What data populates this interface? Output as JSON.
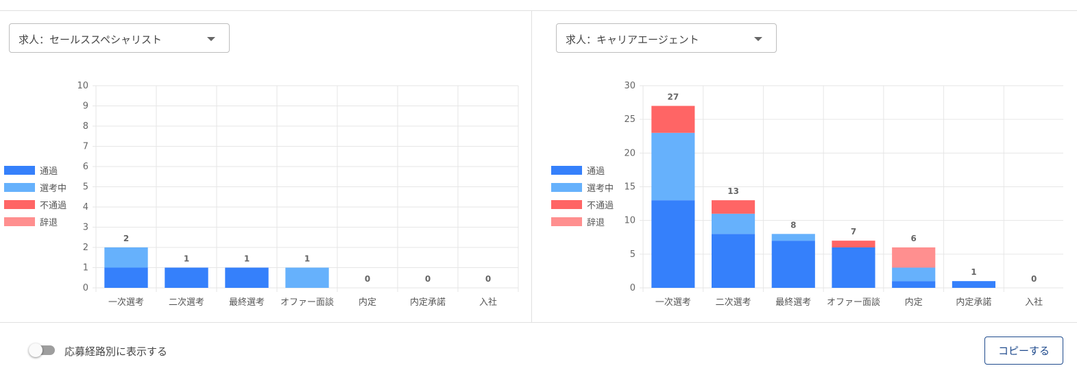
{
  "colors": {
    "pass": "#3580fb",
    "in_progress": "#66b1fc",
    "fail": "#ff6565",
    "declined": "#ff8f8f"
  },
  "legend": [
    {
      "key": "pass",
      "label": "通過"
    },
    {
      "key": "in_progress",
      "label": "選考中"
    },
    {
      "key": "fail",
      "label": "不通過"
    },
    {
      "key": "declined",
      "label": "辞退"
    }
  ],
  "panels": [
    {
      "select_value": "求人：セールススペシャリスト"
    },
    {
      "select_value": "求人：キャリアエージェント"
    }
  ],
  "footer": {
    "toggle_label": "応募経路別に表示する",
    "toggle_on": false,
    "copy_button_label": "コピーする"
  },
  "chart_data": [
    {
      "type": "bar",
      "stacked": true,
      "categories": [
        "一次選考",
        "二次選考",
        "最終選考",
        "オファー面談",
        "内定",
        "内定承諾",
        "入社"
      ],
      "series": [
        {
          "name": "通過",
          "values": [
            1,
            1,
            1,
            0,
            0,
            0,
            0
          ]
        },
        {
          "name": "選考中",
          "values": [
            1,
            0,
            0,
            1,
            0,
            0,
            0
          ]
        },
        {
          "name": "不通過",
          "values": [
            0,
            0,
            0,
            0,
            0,
            0,
            0
          ]
        },
        {
          "name": "辞退",
          "values": [
            0,
            0,
            0,
            0,
            0,
            0,
            0
          ]
        }
      ],
      "totals": [
        2,
        1,
        1,
        1,
        0,
        0,
        0
      ],
      "ylim": [
        0,
        10
      ],
      "yticks": [
        0,
        1,
        2,
        3,
        4,
        5,
        6,
        7,
        8,
        9,
        10
      ],
      "grid": true,
      "legend_position": "left"
    },
    {
      "type": "bar",
      "stacked": true,
      "categories": [
        "一次選考",
        "二次選考",
        "最終選考",
        "オファー面談",
        "内定",
        "内定承諾",
        "入社"
      ],
      "series": [
        {
          "name": "通過",
          "values": [
            13,
            8,
            7,
            6,
            1,
            1,
            0
          ]
        },
        {
          "name": "選考中",
          "values": [
            10,
            3,
            1,
            0,
            2,
            0,
            0
          ]
        },
        {
          "name": "不通過",
          "values": [
            4,
            2,
            0,
            1,
            0,
            0,
            0
          ]
        },
        {
          "name": "辞退",
          "values": [
            0,
            0,
            0,
            0,
            3,
            0,
            0
          ]
        }
      ],
      "totals": [
        27,
        13,
        8,
        7,
        6,
        1,
        0
      ],
      "ylim": [
        0,
        30
      ],
      "yticks": [
        0,
        5,
        10,
        15,
        20,
        25,
        30
      ],
      "grid": true,
      "legend_position": "left"
    }
  ]
}
